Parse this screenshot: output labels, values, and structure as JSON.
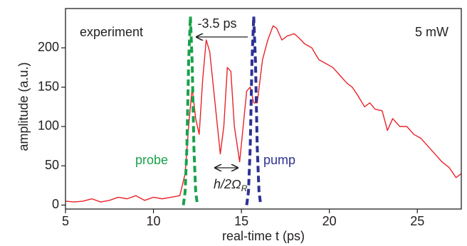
{
  "chart_data": {
    "type": "line",
    "x_label": "real-time t (ps)",
    "y_label": "amplitude (a.u.)",
    "xlim": [
      5,
      27.5
    ],
    "ylim": [
      -5,
      250
    ],
    "xticks": [
      5,
      10,
      15,
      20,
      25
    ],
    "yticks": [
      0,
      50,
      100,
      150,
      200
    ],
    "annotations": {
      "power": "5 mW",
      "delay": "-3.5 ps",
      "rabi": {
        "text": "h/2Ω",
        "sub": "R"
      }
    },
    "series": [
      {
        "name": "experiment",
        "color": "#e8232a",
        "dashed": false,
        "x": [
          5,
          5.5,
          6,
          6.5,
          7,
          7.5,
          8,
          8.5,
          9,
          9.5,
          10,
          10.5,
          11,
          11.5,
          11.8,
          12,
          12.2,
          12.4,
          12.6,
          12.8,
          13,
          13.2,
          13.5,
          13.8,
          14,
          14.2,
          14.4,
          14.6,
          14.9,
          15.1,
          15.3,
          15.5,
          15.7,
          15.9,
          16.2,
          16.5,
          16.8,
          17,
          17.3,
          17.6,
          18,
          18.3,
          18.6,
          19,
          19.4,
          19.8,
          20.2,
          20.6,
          21,
          21.3,
          21.6,
          22,
          22.3,
          22.6,
          23,
          23.3,
          23.6,
          24,
          24.4,
          24.8,
          25.2,
          25.6,
          26,
          26.4,
          26.8,
          27.2,
          27.5
        ],
        "values": [
          5,
          4,
          5,
          8,
          4,
          6,
          10,
          8,
          12,
          6,
          10,
          8,
          10,
          12,
          40,
          100,
          150,
          110,
          90,
          160,
          210,
          195,
          130,
          65,
          100,
          175,
          170,
          100,
          55,
          100,
          145,
          150,
          130,
          130,
          185,
          210,
          228,
          225,
          210,
          215,
          218,
          212,
          205,
          200,
          185,
          180,
          175,
          165,
          155,
          150,
          140,
          125,
          130,
          122,
          120,
          95,
          110,
          100,
          100,
          90,
          85,
          75,
          65,
          55,
          48,
          35,
          40
        ]
      },
      {
        "name": "probe",
        "color": "#1aa14b",
        "dashed": true,
        "x": [
          11.7,
          11.8,
          11.9,
          12.0,
          12.1,
          12.2,
          12.3,
          12.4,
          12.5
        ],
        "values": [
          0,
          17,
          73,
          182,
          240,
          182,
          73,
          17,
          0
        ]
      },
      {
        "name": "pump",
        "color": "#2e3192",
        "dashed": true,
        "x": [
          15.3,
          15.4,
          15.5,
          15.6,
          15.7,
          15.8,
          15.9,
          16.0,
          16.1
        ],
        "values": [
          0,
          17,
          73,
          182,
          240,
          182,
          73,
          17,
          0
        ]
      }
    ]
  }
}
